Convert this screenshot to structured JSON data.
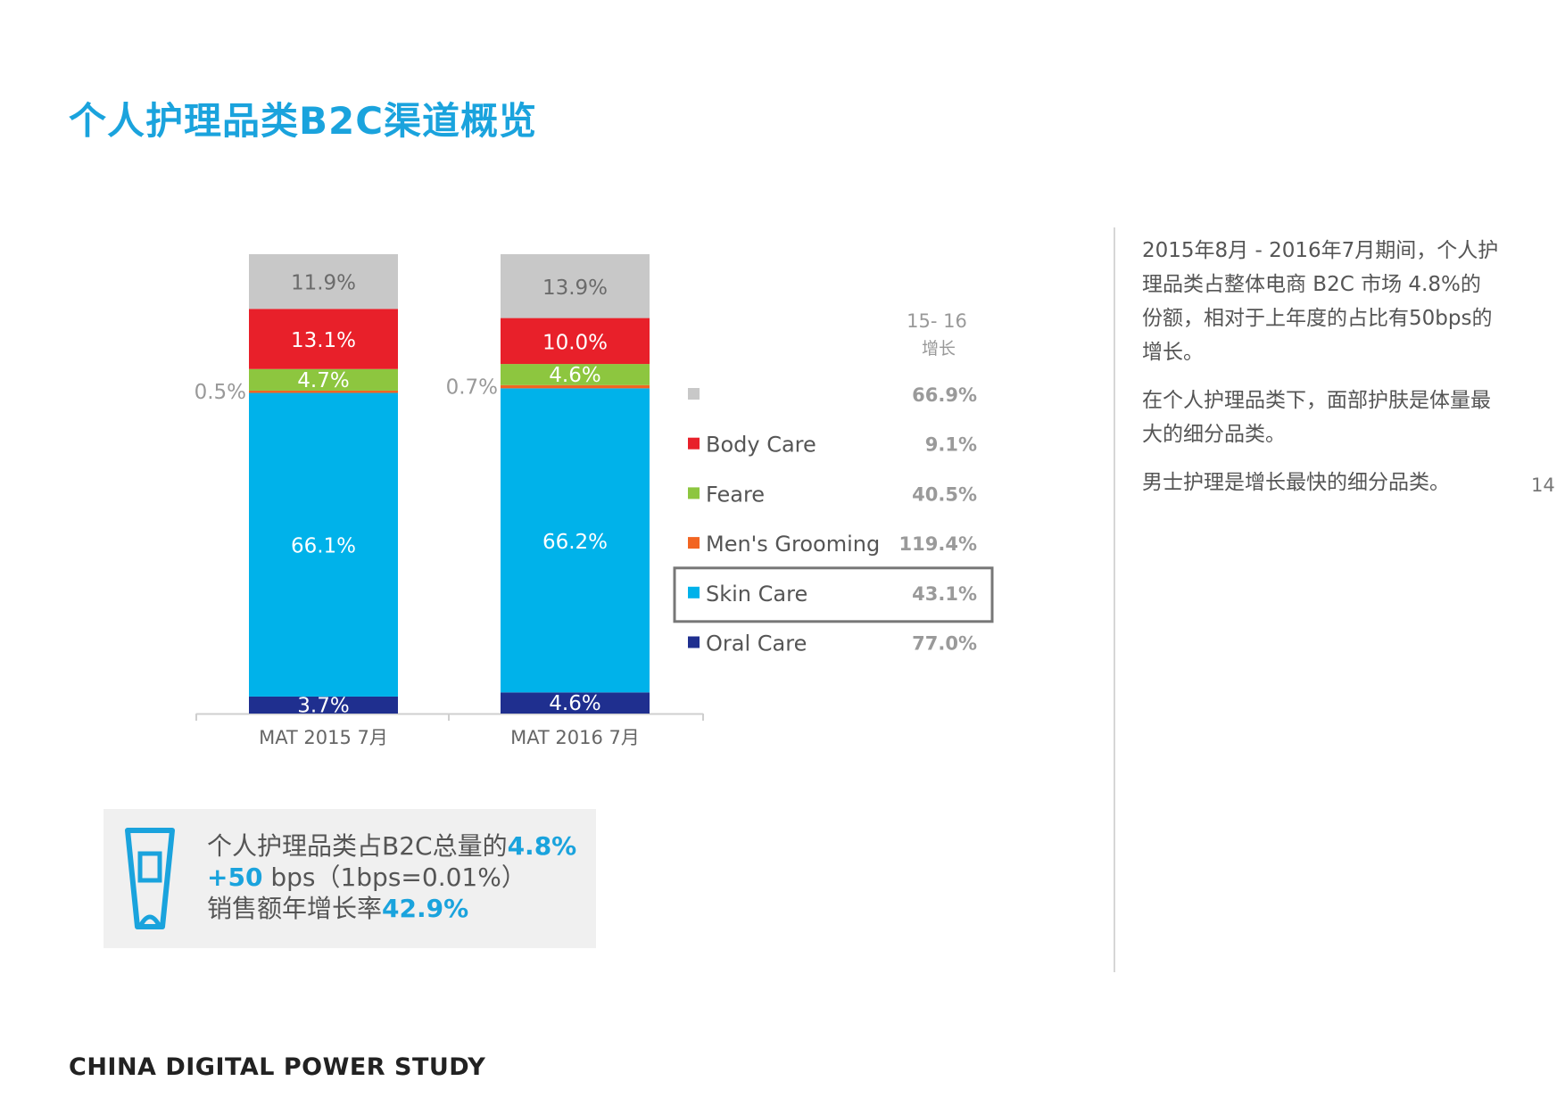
{
  "page_title": "个人护理品类B2C渠道概览",
  "chart_data": {
    "type": "bar",
    "stacked": true,
    "categories": [
      "MAT 2015 7月",
      "MAT 2016 7月"
    ],
    "series": [
      {
        "name": "Oral Care",
        "color": "#1f2f8f",
        "values": [
          3.7,
          4.6
        ],
        "labels": [
          "3.7%",
          "4.6%"
        ],
        "growth": "77.0%"
      },
      {
        "name": "Skin Care",
        "color": "#00b2ea",
        "values": [
          66.1,
          66.2
        ],
        "labels": [
          "66.1%",
          "66.2%"
        ],
        "growth": "43.1%",
        "highlighted": true
      },
      {
        "name": "Men's Grooming",
        "color": "#f26522",
        "values": [
          0.5,
          0.7
        ],
        "labels": [
          "0.5%",
          "0.7%"
        ],
        "growth": "119.4%"
      },
      {
        "name": "Feare",
        "color": "#8dc63f",
        "values": [
          4.7,
          4.6
        ],
        "labels": [
          "4.7%",
          "4.6%"
        ],
        "growth": "40.5%"
      },
      {
        "name": "Body Care",
        "color": "#e8202a",
        "values": [
          13.1,
          10.0
        ],
        "labels": [
          "13.1%",
          "10.0%"
        ],
        "growth": "9.1%"
      },
      {
        "name": "",
        "color": "#c8c8c8",
        "values": [
          11.9,
          13.9
        ],
        "labels": [
          "11.9%",
          "13.9%"
        ],
        "growth": "66.9%"
      }
    ],
    "growth_header": [
      "15- 16",
      "增长"
    ],
    "legend_position": "right",
    "ylim": [
      0,
      100
    ]
  },
  "summary": {
    "line1_text": "个人护理品类占B2C总量的",
    "line1_value": "4.8%",
    "line2_value": "+50",
    "line2_text": " bps（1bps=0.01%）",
    "line3_text": "销售额年增长率",
    "line3_value": "42.9%"
  },
  "notes": [
    "2015年8月 - 2016年7月期间，个人护理品类占整体电商 B2C 市场 4.8%的份额，相对于上年度的占比有50bps的增长。",
    "在个人护理品类下，面部护肤是体量最大的细分品类。",
    "男士护理是增长最快的细分品类。"
  ],
  "page_number": "14",
  "footer": "CHINA DIGITAL POWER STUDY"
}
